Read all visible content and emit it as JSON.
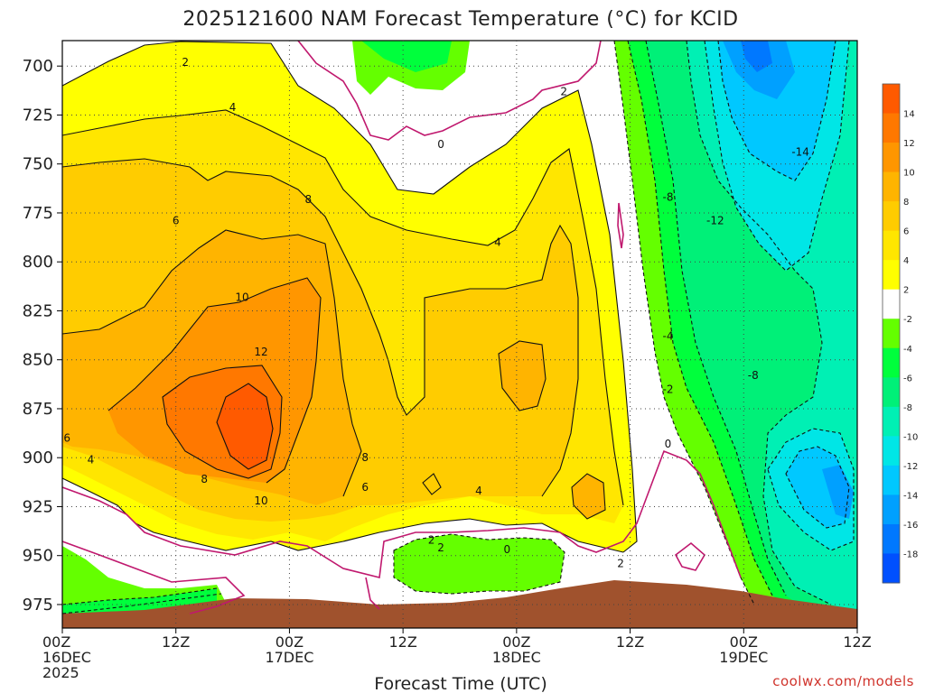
{
  "chart_data": {
    "type": "heatmap",
    "title": "2025121600 NAM Forecast Temperature (°C) for KCID",
    "xlabel": "Forecast Time (UTC)",
    "credit": "coolwx.com/models",
    "x_ticks": [
      {
        "hour": 0,
        "l1": "00Z",
        "l2": "16DEC",
        "l3": "2025"
      },
      {
        "hour": 12,
        "l1": "12Z",
        "l2": "",
        "l3": ""
      },
      {
        "hour": 24,
        "l1": "00Z",
        "l2": "17DEC",
        "l3": ""
      },
      {
        "hour": 36,
        "l1": "12Z",
        "l2": "",
        "l3": ""
      },
      {
        "hour": 48,
        "l1": "00Z",
        "l2": "18DEC",
        "l3": ""
      },
      {
        "hour": 60,
        "l1": "12Z",
        "l2": "",
        "l3": ""
      },
      {
        "hour": 72,
        "l1": "00Z",
        "l2": "19DEC",
        "l3": ""
      },
      {
        "hour": 84,
        "l1": "12Z",
        "l2": "",
        "l3": ""
      }
    ],
    "xlim": [
      0,
      84
    ],
    "y_ticks": [
      700,
      725,
      750,
      775,
      800,
      825,
      850,
      875,
      900,
      925,
      950,
      975
    ],
    "ylim": [
      987,
      687
    ],
    "grid": true,
    "colorbar": {
      "ticks": [
        14,
        12,
        10,
        8,
        6,
        4,
        2,
        -2,
        -4,
        -6,
        -8,
        -10,
        -12,
        -14,
        -16,
        -18
      ],
      "colors": [
        "#ff5a00",
        "#ff7800",
        "#ff9600",
        "#ffb400",
        "#ffcc00",
        "#ffe600",
        "#ffff00",
        "#ffffff",
        "#64ff00",
        "#00ff3c",
        "#00f078",
        "#00f0b4",
        "#00e6e6",
        "#00c8ff",
        "#00a0ff",
        "#0078ff",
        "#0050ff"
      ]
    },
    "contour_labels": [
      {
        "hour": 13,
        "p": 698,
        "t": "2"
      },
      {
        "hour": 18,
        "p": 721,
        "t": "4"
      },
      {
        "hour": 40,
        "p": 740,
        "t": "0"
      },
      {
        "hour": 53,
        "p": 713,
        "t": "2"
      },
      {
        "hour": 12,
        "p": 779,
        "t": "6"
      },
      {
        "hour": 26,
        "p": 768,
        "t": "8"
      },
      {
        "hour": 46,
        "p": 790,
        "t": "4"
      },
      {
        "hour": 19,
        "p": 818,
        "t": "10"
      },
      {
        "hour": 21,
        "p": 846,
        "t": "12"
      },
      {
        "hour": 0.5,
        "p": 890,
        "t": "6"
      },
      {
        "hour": 3,
        "p": 901,
        "t": "4"
      },
      {
        "hour": 15,
        "p": 911,
        "t": "8"
      },
      {
        "hour": 21,
        "p": 922,
        "t": "10"
      },
      {
        "hour": 32,
        "p": 900,
        "t": "8"
      },
      {
        "hour": 32,
        "p": 915,
        "t": "6"
      },
      {
        "hour": 44,
        "p": 917,
        "t": "4"
      },
      {
        "hour": 39,
        "p": 942,
        "t": "2"
      },
      {
        "hour": 40,
        "p": 946,
        "t": "2"
      },
      {
        "hour": 47,
        "p": 947,
        "t": "0"
      },
      {
        "hour": 59,
        "p": 954,
        "t": "2"
      },
      {
        "hour": 64,
        "p": 767,
        "t": "-8"
      },
      {
        "hour": 69,
        "p": 779,
        "t": "-12"
      },
      {
        "hour": 78,
        "p": 744,
        "t": "-14"
      },
      {
        "hour": 64,
        "p": 838,
        "t": "-4"
      },
      {
        "hour": 64,
        "p": 865,
        "t": "-2"
      },
      {
        "hour": 73,
        "p": 858,
        "t": "-8"
      },
      {
        "hour": 64,
        "p": 893,
        "t": "0"
      }
    ]
  }
}
